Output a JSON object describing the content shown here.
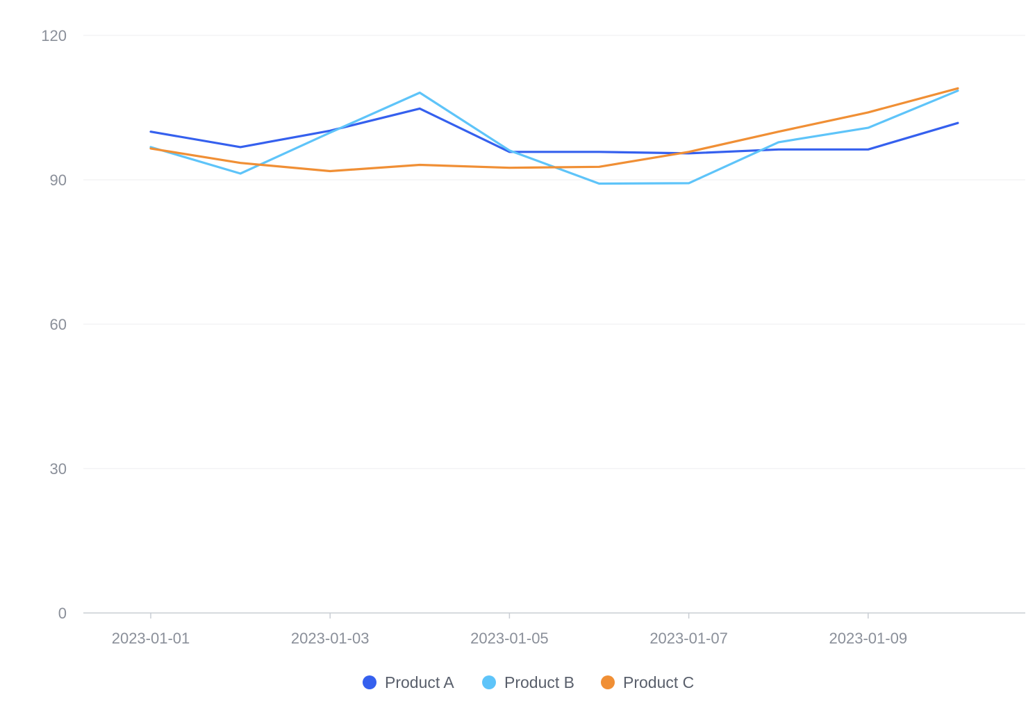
{
  "chart_data": {
    "type": "line",
    "title": "",
    "xlabel": "",
    "ylabel": "",
    "x": [
      "2023-01-01",
      "2023-01-02",
      "2023-01-03",
      "2023-01-04",
      "2023-01-05",
      "2023-01-06",
      "2023-01-07",
      "2023-01-08",
      "2023-01-09",
      "2023-01-10"
    ],
    "x_tick_labels": [
      "2023-01-01",
      "2023-01-03",
      "2023-01-05",
      "2023-01-07",
      "2023-01-09"
    ],
    "ylim": [
      0,
      120
    ],
    "y_ticks": [
      0,
      30,
      60,
      90,
      120
    ],
    "grid": true,
    "legend_position": "bottom-center",
    "series": [
      {
        "name": "Product A",
        "color": "#3560ee",
        "values": [
          100,
          96.8,
          100.2,
          104.8,
          95.8,
          95.8,
          95.5,
          96.3,
          96.3,
          101.8
        ]
      },
      {
        "name": "Product B",
        "color": "#5ec4f9",
        "values": [
          96.8,
          91.3,
          99.8,
          108.1,
          96.1,
          89.2,
          89.3,
          97.8,
          100.8,
          108.5
        ]
      },
      {
        "name": "Product C",
        "color": "#f08f35",
        "values": [
          96.5,
          93.5,
          91.8,
          93.1,
          92.5,
          92.7,
          95.8,
          100.0,
          104.0,
          109.0
        ]
      }
    ]
  }
}
